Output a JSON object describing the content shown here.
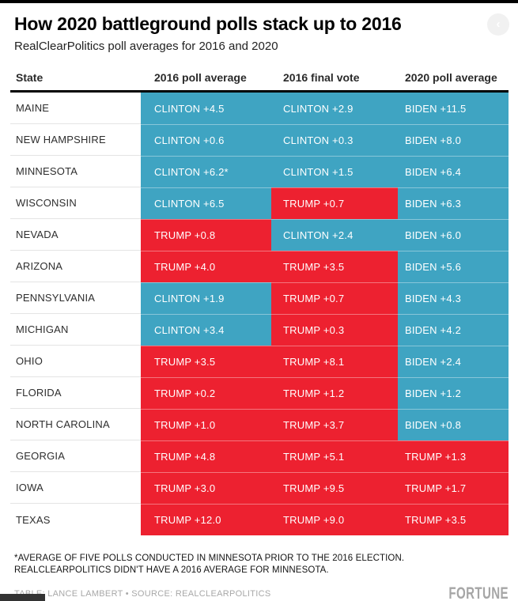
{
  "header": {
    "title": "How 2020 battleground polls stack up to 2016",
    "subtitle": "RealClearPolitics poll averages for 2016 and 2020",
    "nav_button_glyph": "‹"
  },
  "colors": {
    "dem": "#3FA4C2",
    "rep": "#ED2130"
  },
  "chart_data": {
    "type": "table",
    "title": "How 2020 battleground polls stack up to 2016",
    "subtitle": "RealClearPolitics poll averages for 2016 and 2020",
    "columns": [
      "State",
      "2016 poll average",
      "2016 final vote",
      "2020 poll average"
    ],
    "rows": [
      {
        "state": "MAINE",
        "cells": [
          {
            "text": "CLINTON +4.5",
            "party": "dem"
          },
          {
            "text": "CLINTON +2.9",
            "party": "dem"
          },
          {
            "text": "BIDEN +11.5",
            "party": "dem"
          }
        ]
      },
      {
        "state": "NEW HAMPSHIRE",
        "cells": [
          {
            "text": "CLINTON +0.6",
            "party": "dem"
          },
          {
            "text": "CLINTON +0.3",
            "party": "dem"
          },
          {
            "text": "BIDEN +8.0",
            "party": "dem"
          }
        ]
      },
      {
        "state": "MINNESOTA",
        "cells": [
          {
            "text": "CLINTON +6.2*",
            "party": "dem"
          },
          {
            "text": "CLINTON +1.5",
            "party": "dem"
          },
          {
            "text": "BIDEN +6.4",
            "party": "dem"
          }
        ]
      },
      {
        "state": "WISCONSIN",
        "cells": [
          {
            "text": "CLINTON +6.5",
            "party": "dem"
          },
          {
            "text": "TRUMP +0.7",
            "party": "rep"
          },
          {
            "text": "BIDEN +6.3",
            "party": "dem"
          }
        ]
      },
      {
        "state": "NEVADA",
        "cells": [
          {
            "text": "TRUMP +0.8",
            "party": "rep"
          },
          {
            "text": "CLINTON +2.4",
            "party": "dem"
          },
          {
            "text": "BIDEN +6.0",
            "party": "dem"
          }
        ]
      },
      {
        "state": "ARIZONA",
        "cells": [
          {
            "text": "TRUMP +4.0",
            "party": "rep"
          },
          {
            "text": "TRUMP +3.5",
            "party": "rep"
          },
          {
            "text": "BIDEN +5.6",
            "party": "dem"
          }
        ]
      },
      {
        "state": "PENNSYLVANIA",
        "cells": [
          {
            "text": "CLINTON +1.9",
            "party": "dem"
          },
          {
            "text": "TRUMP +0.7",
            "party": "rep"
          },
          {
            "text": "BIDEN +4.3",
            "party": "dem"
          }
        ]
      },
      {
        "state": "MICHIGAN",
        "cells": [
          {
            "text": "CLINTON +3.4",
            "party": "dem"
          },
          {
            "text": "TRUMP +0.3",
            "party": "rep"
          },
          {
            "text": "BIDEN +4.2",
            "party": "dem"
          }
        ]
      },
      {
        "state": "OHIO",
        "cells": [
          {
            "text": "TRUMP +3.5",
            "party": "rep"
          },
          {
            "text": "TRUMP +8.1",
            "party": "rep"
          },
          {
            "text": "BIDEN +2.4",
            "party": "dem"
          }
        ]
      },
      {
        "state": "FLORIDA",
        "cells": [
          {
            "text": "TRUMP +0.2",
            "party": "rep"
          },
          {
            "text": "TRUMP +1.2",
            "party": "rep"
          },
          {
            "text": "BIDEN +1.2",
            "party": "dem"
          }
        ]
      },
      {
        "state": "NORTH CAROLINA",
        "cells": [
          {
            "text": "TRUMP +1.0",
            "party": "rep"
          },
          {
            "text": "TRUMP +3.7",
            "party": "rep"
          },
          {
            "text": "BIDEN +0.8",
            "party": "dem"
          }
        ]
      },
      {
        "state": "GEORGIA",
        "cells": [
          {
            "text": "TRUMP +4.8",
            "party": "rep"
          },
          {
            "text": "TRUMP +5.1",
            "party": "rep"
          },
          {
            "text": "TRUMP +1.3",
            "party": "rep"
          }
        ]
      },
      {
        "state": "IOWA",
        "cells": [
          {
            "text": "TRUMP +3.0",
            "party": "rep"
          },
          {
            "text": "TRUMP +9.5",
            "party": "rep"
          },
          {
            "text": "TRUMP +1.7",
            "party": "rep"
          }
        ]
      },
      {
        "state": "TEXAS",
        "cells": [
          {
            "text": "TRUMP +12.0",
            "party": "rep"
          },
          {
            "text": "TRUMP +9.0",
            "party": "rep"
          },
          {
            "text": "TRUMP +3.5",
            "party": "rep"
          }
        ]
      }
    ]
  },
  "footnote": "*AVERAGE OF FIVE POLLS CONDUCTED IN MINNESOTA PRIOR TO THE 2016 ELECTION. REALCLEARPOLITICS DIDN'T HAVE A 2016 AVERAGE FOR MINNESOTA.",
  "footer": {
    "credit": "TABLE: LANCE LAMBERT • SOURCE: REALCLEARPOLITICS",
    "brand": "FORTUNE"
  }
}
